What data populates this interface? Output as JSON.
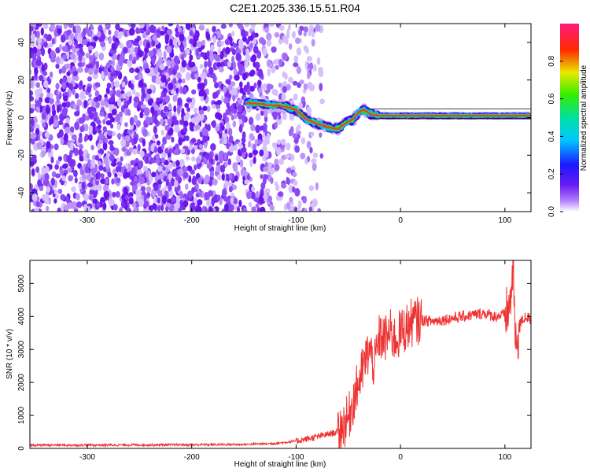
{
  "title": "C2E1.2025.336.15.51.R04",
  "colors": {
    "cloud": "#7a1ef0",
    "snr_line": "#ee3333",
    "frame": "#000000"
  },
  "chart_data": [
    {
      "type": "heatmap",
      "title": "C2E1.2025.336.15.51.R04",
      "xlabel": "Height of straight line (km)",
      "ylabel": "Frequency (Hz)",
      "xlim": [
        -355,
        125
      ],
      "ylim": [
        -50,
        50
      ],
      "xticks": [
        -300,
        -200,
        -100,
        0,
        100
      ],
      "xtick_labels": [
        "-300",
        "-200",
        "-100",
        "0",
        "100"
      ],
      "yticks": [
        -40,
        -20,
        0,
        20,
        40
      ],
      "ytick_labels": [
        "-40",
        "-20",
        "0",
        "20",
        "40"
      ],
      "colorbar": {
        "label": "Normalized spectral amplitude",
        "range": [
          0,
          1
        ],
        "ticks": [
          0.0,
          0.2,
          0.4,
          0.6,
          0.8
        ],
        "tick_labels": [
          "0.0",
          "0.2",
          "0.4",
          "0.6",
          "0.8"
        ],
        "colormap": "rainbow (white-violet-blue-cyan-green-yellow-red-magenta)"
      },
      "noise_region_x": [
        -355,
        -75
      ],
      "signal_track": {
        "x": [
          -148,
          -130,
          -110,
          -100,
          -90,
          -80,
          -70,
          -60,
          -50,
          -45,
          -40,
          -35,
          -30,
          -20,
          0,
          50,
          100,
          125
        ],
        "freq": [
          8,
          7,
          6,
          4,
          -1,
          -3,
          -5,
          -6,
          -2,
          -1,
          3,
          4,
          2,
          1,
          1,
          1,
          1,
          1
        ]
      }
    },
    {
      "type": "line",
      "xlabel": "Height of straight line (km)",
      "ylabel": "SNR (10 * v/v)",
      "xlim": [
        -355,
        125
      ],
      "ylim": [
        0,
        5700
      ],
      "xticks": [
        -300,
        -200,
        -100,
        0,
        100
      ],
      "xtick_labels": [
        "-300",
        "-200",
        "-100",
        "0",
        "100"
      ],
      "yticks": [
        0,
        1000,
        2000,
        3000,
        4000,
        5000
      ],
      "ytick_labels": [
        "0",
        "1000",
        "2000",
        "3000",
        "4000",
        "5000"
      ],
      "series": [
        {
          "name": "SNR",
          "x": [
            -355,
            -300,
            -200,
            -150,
            -120,
            -100,
            -80,
            -60,
            -50,
            -45,
            -40,
            -35,
            -30,
            -25,
            -20,
            -15,
            -10,
            -5,
            0,
            10,
            20,
            30,
            40,
            50,
            60,
            70,
            80,
            90,
            100,
            105,
            108,
            110,
            115,
            120,
            125
          ],
          "y": [
            100,
            100,
            110,
            120,
            150,
            220,
            350,
            500,
            900,
            1500,
            2000,
            2500,
            3000,
            2500,
            3400,
            3300,
            3500,
            3300,
            3500,
            3800,
            3900,
            3850,
            3900,
            3950,
            4000,
            4050,
            4100,
            4000,
            4050,
            4300,
            5700,
            3000,
            3800,
            4000,
            3900
          ]
        }
      ]
    }
  ]
}
